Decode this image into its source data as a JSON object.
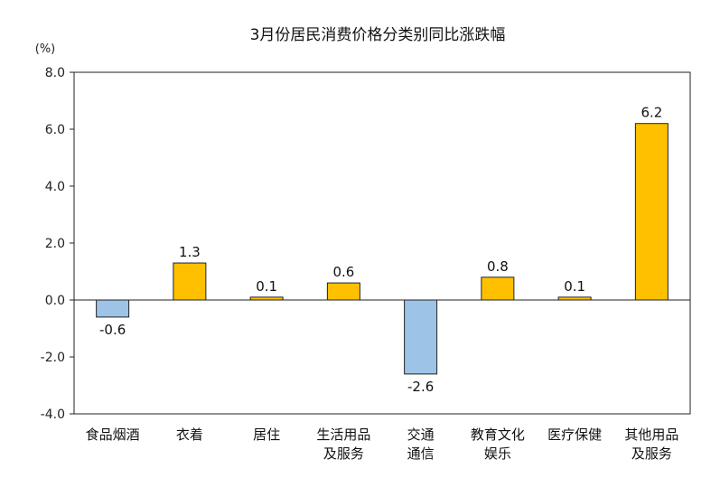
{
  "chart_data": {
    "type": "bar",
    "title": "3月份居民消费价格分类别同比涨跌幅",
    "unit_label": "(%)",
    "ylim": [
      -4.0,
      8.0
    ],
    "yticks": [
      "8.0",
      "6.0",
      "4.0",
      "2.0",
      "0.0",
      "-2.0",
      "-4.0"
    ],
    "ytick_values": [
      8,
      6,
      4,
      2,
      0,
      -2,
      -4
    ],
    "grid": false,
    "legend": "none",
    "categories": [
      [
        "食品烟酒"
      ],
      [
        "衣着"
      ],
      [
        "居住"
      ],
      [
        "生活用品",
        "及服务"
      ],
      [
        "交通",
        "通信"
      ],
      [
        "教育文化",
        "娱乐"
      ],
      [
        "医疗保健"
      ],
      [
        "其他用品",
        "及服务"
      ]
    ],
    "values": [
      -0.6,
      1.3,
      0.1,
      0.6,
      -2.6,
      0.8,
      0.1,
      6.2
    ],
    "value_labels": [
      "-0.6",
      "1.3",
      "0.1",
      "0.6",
      "-2.6",
      "0.8",
      "0.1",
      "6.2"
    ],
    "colors": {
      "positive": "#FFC000",
      "negative": "#9DC3E6",
      "bar_stroke": "#222222"
    }
  }
}
